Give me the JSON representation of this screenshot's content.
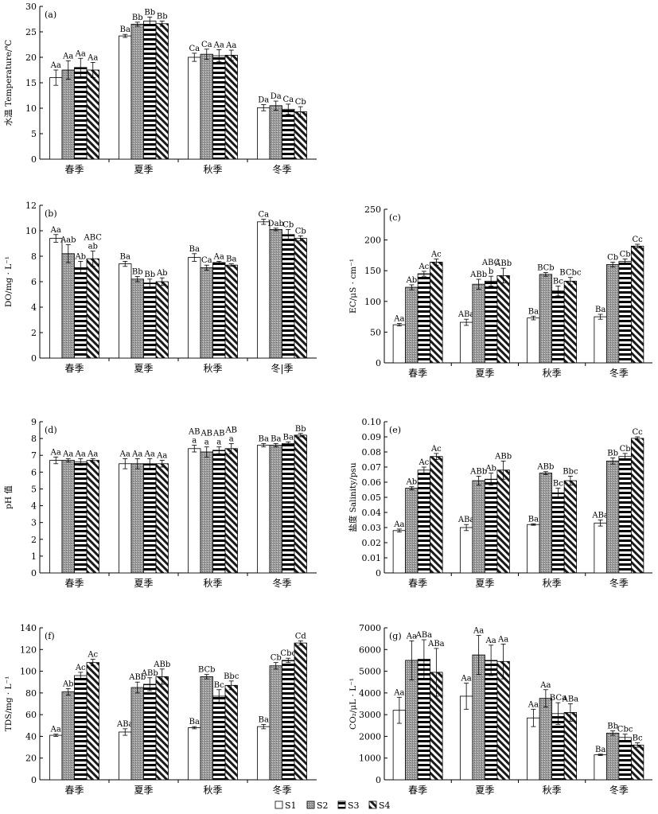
{
  "legend": [
    "S1",
    "S2",
    "S3",
    "S4"
  ],
  "chart_data": [
    {
      "id": "a",
      "type": "bar",
      "panel_label": "(a)",
      "ylabel": "水温 Temperature/℃",
      "categories": [
        "春季",
        "夏季",
        "秋季",
        "冬季"
      ],
      "ylim": [
        0,
        30
      ],
      "yticks": [
        0,
        5,
        10,
        15,
        20,
        25,
        30
      ],
      "series": [
        {
          "name": "S1",
          "values": [
            16.0,
            24.2,
            20.0,
            10.1
          ],
          "errors": [
            1.5,
            0.3,
            0.8,
            0.6
          ]
        },
        {
          "name": "S2",
          "values": [
            17.5,
            26.5,
            20.6,
            10.5
          ],
          "errors": [
            1.8,
            0.4,
            1.0,
            0.9
          ]
        },
        {
          "name": "S3",
          "values": [
            18.0,
            27.1,
            20.3,
            9.8
          ],
          "errors": [
            1.8,
            0.8,
            1.2,
            1.0
          ]
        },
        {
          "name": "S4",
          "values": [
            17.5,
            26.6,
            20.4,
            9.3
          ],
          "errors": [
            1.5,
            0.5,
            1.0,
            1.0
          ]
        }
      ],
      "labels": [
        [
          "Aa",
          "Aa",
          "Aa",
          "Aa"
        ],
        [
          "Ba",
          "Bb",
          "Bb",
          "Bb"
        ],
        [
          "Ca",
          "Ca",
          "Aa",
          "Aa"
        ],
        [
          "Da",
          "Da",
          "Ca",
          "Cb"
        ]
      ]
    },
    {
      "id": "b",
      "type": "bar",
      "panel_label": "(b)",
      "ylabel": "DO/mg · L⁻¹",
      "categories": [
        "春季",
        "夏季",
        "秋季",
        "冬|季"
      ],
      "ylim": [
        0,
        12
      ],
      "yticks": [
        0,
        2,
        4,
        6,
        8,
        10,
        12
      ],
      "series": [
        {
          "name": "S1",
          "values": [
            9.4,
            7.4,
            7.9,
            10.7
          ],
          "errors": [
            0.3,
            0.2,
            0.3,
            0.2
          ]
        },
        {
          "name": "S2",
          "values": [
            8.2,
            6.2,
            7.1,
            10.1
          ],
          "errors": [
            0.7,
            0.2,
            0.2,
            0.1
          ]
        },
        {
          "name": "S3",
          "values": [
            7.1,
            5.9,
            7.5,
            9.7
          ],
          "errors": [
            0.5,
            0.3,
            0.1,
            0.4
          ]
        },
        {
          "name": "S4",
          "values": [
            7.8,
            6.0,
            7.3,
            9.4
          ],
          "errors": [
            0.6,
            0.3,
            0.1,
            0.2
          ]
        }
      ],
      "labels": [
        [
          "Aa",
          "Aab",
          "Ab",
          "ABC\nab"
        ],
        [
          "Ba",
          "Bb",
          "Bb",
          "Ab"
        ],
        [
          "Ba",
          "Ca",
          "Aa",
          "Ba"
        ],
        [
          "Ca",
          "Dab",
          "Cb",
          "Cb"
        ]
      ]
    },
    {
      "id": "c",
      "type": "bar",
      "panel_label": "(c)",
      "ylabel": "EC/μS · cm⁻¹",
      "categories": [
        "春季",
        "夏季",
        "秋季",
        "冬季"
      ],
      "ylim": [
        0,
        250
      ],
      "yticks": [
        0,
        50,
        100,
        150,
        200,
        250
      ],
      "series": [
        {
          "name": "S1",
          "values": [
            62,
            66,
            73,
            75
          ],
          "errors": [
            2,
            5,
            3,
            4
          ]
        },
        {
          "name": "S2",
          "values": [
            123,
            128,
            144,
            160
          ],
          "errors": [
            4,
            8,
            3,
            4
          ]
        },
        {
          "name": "S3",
          "values": [
            145,
            133,
            117,
            165
          ],
          "errors": [
            4,
            8,
            8,
            4
          ]
        },
        {
          "name": "S4",
          "values": [
            164,
            142,
            133,
            190
          ],
          "errors": [
            5,
            12,
            6,
            3
          ]
        }
      ],
      "labels": [
        [
          "Aa",
          "Ab",
          "Ac",
          "Ac"
        ],
        [
          "ABa",
          "ABb",
          "ABC\nb",
          "ABb"
        ],
        [
          "Ba",
          "BCb",
          "Bc",
          "BCbc"
        ],
        [
          "Ba",
          "Cb",
          "Cb",
          "Cc"
        ]
      ]
    },
    {
      "id": "d",
      "type": "bar",
      "panel_label": "(d)",
      "ylabel": "pH 值",
      "categories": [
        "春季",
        "夏季",
        "秋季",
        "冬季"
      ],
      "ylim": [
        0,
        9
      ],
      "yticks": [
        0,
        1,
        2,
        3,
        4,
        5,
        6,
        7,
        8,
        9
      ],
      "series": [
        {
          "name": "S1",
          "values": [
            6.7,
            6.5,
            7.4,
            7.6
          ],
          "errors": [
            0.2,
            0.3,
            0.2,
            0.1
          ]
        },
        {
          "name": "S2",
          "values": [
            6.7,
            6.5,
            7.2,
            7.6
          ],
          "errors": [
            0.1,
            0.3,
            0.3,
            0.1
          ]
        },
        {
          "name": "S3",
          "values": [
            6.6,
            6.5,
            7.3,
            7.7
          ],
          "errors": [
            0.2,
            0.3,
            0.2,
            0.1
          ]
        },
        {
          "name": "S4",
          "values": [
            6.7,
            6.5,
            7.4,
            8.2
          ],
          "errors": [
            0.1,
            0.2,
            0.3,
            0.1
          ]
        }
      ],
      "labels": [
        [
          "Aa",
          "Aa",
          "Aa",
          "Aa"
        ],
        [
          "Aa",
          "Aa",
          "Aa",
          "Aa"
        ],
        [
          "AB\na",
          "AB\na",
          "AB\na",
          "AB\na"
        ],
        [
          "Ba",
          "Ba",
          "Ba",
          "Bb"
        ]
      ]
    },
    {
      "id": "e",
      "type": "bar",
      "panel_label": "(e)",
      "ylabel": "盐度 Salinity/psu",
      "categories": [
        "春季",
        "夏季",
        "秋季",
        "冬季"
      ],
      "ylim": [
        0,
        0.1
      ],
      "yticks": [
        0,
        0.01,
        0.02,
        0.03,
        0.04,
        0.05,
        0.06,
        0.07,
        0.08,
        0.09,
        0.1
      ],
      "series": [
        {
          "name": "S1",
          "values": [
            0.028,
            0.03,
            0.032,
            0.033
          ],
          "errors": [
            0.001,
            0.002,
            0.0005,
            0.002
          ]
        },
        {
          "name": "S2",
          "values": [
            0.056,
            0.061,
            0.066,
            0.074
          ],
          "errors": [
            0.001,
            0.003,
            0.001,
            0.002
          ]
        },
        {
          "name": "S3",
          "values": [
            0.068,
            0.062,
            0.053,
            0.077
          ],
          "errors": [
            0.002,
            0.004,
            0.003,
            0.002
          ]
        },
        {
          "name": "S4",
          "values": [
            0.077,
            0.068,
            0.061,
            0.089
          ],
          "errors": [
            0.002,
            0.006,
            0.003,
            0.001
          ]
        }
      ],
      "labels": [
        [
          "Aa",
          "Ab",
          "Ac",
          "Ac"
        ],
        [
          "ABa",
          "ABb",
          "Ab",
          "ABb"
        ],
        [
          "Ba",
          "ABb",
          "Bc",
          "Bbc"
        ],
        [
          "ABa",
          "Bb",
          "Cb",
          "Cc"
        ]
      ]
    },
    {
      "id": "f",
      "type": "bar",
      "panel_label": "(f)",
      "ylabel": "TDS/mg · L⁻¹",
      "categories": [
        "春季",
        "夏季",
        "秋季",
        "冬季"
      ],
      "ylim": [
        0,
        140
      ],
      "yticks": [
        0,
        20,
        40,
        60,
        80,
        100,
        120,
        140
      ],
      "series": [
        {
          "name": "S1",
          "values": [
            41,
            44,
            48,
            49
          ],
          "errors": [
            1,
            3,
            1,
            2
          ]
        },
        {
          "name": "S2",
          "values": [
            81,
            85,
            95,
            105
          ],
          "errors": [
            3,
            5,
            2,
            3
          ]
        },
        {
          "name": "S3",
          "values": [
            96,
            88,
            77,
            110
          ],
          "errors": [
            3,
            6,
            6,
            2
          ]
        },
        {
          "name": "S4",
          "values": [
            108,
            95,
            87,
            126
          ],
          "errors": [
            3,
            7,
            4,
            2
          ]
        }
      ],
      "labels": [
        [
          "Aa",
          "Ab",
          "Ac",
          "Ac"
        ],
        [
          "ABa",
          "ABb",
          "ABb",
          "ABb"
        ],
        [
          "Ba",
          "BCb",
          "Bc",
          "Bbc"
        ],
        [
          "Ba",
          "Cb",
          "Cbc",
          "Cd"
        ]
      ]
    },
    {
      "id": "g",
      "type": "bar",
      "panel_label": "(g)",
      "ylabel": "CO₂/μL · L⁻¹",
      "categories": [
        "春季",
        "夏季",
        "秋季",
        "冬季"
      ],
      "ylim": [
        0,
        7000
      ],
      "yticks": [
        0,
        1000,
        2000,
        3000,
        4000,
        5000,
        6000,
        7000
      ],
      "series": [
        {
          "name": "S1",
          "values": [
            3200,
            3850,
            2850,
            1150
          ],
          "errors": [
            600,
            600,
            400,
            30
          ]
        },
        {
          "name": "S2",
          "values": [
            5500,
            5750,
            3750,
            2150
          ],
          "errors": [
            900,
            900,
            400,
            100
          ]
        },
        {
          "name": "S3",
          "values": [
            5550,
            5500,
            3050,
            1950
          ],
          "errors": [
            900,
            700,
            500,
            150
          ]
        },
        {
          "name": "S4",
          "values": [
            4950,
            5450,
            3100,
            1600
          ],
          "errors": [
            1100,
            800,
            400,
            100
          ]
        }
      ],
      "labels": [
        [
          "Aa",
          "Aa",
          "ABa",
          "ABa"
        ],
        [
          "Aa",
          "Aa",
          "Aa",
          "Aa"
        ],
        [
          "Aa",
          "Aa",
          "BCa",
          "ABa"
        ],
        [
          "Ba",
          "Bb",
          "Cbc",
          "Bc"
        ]
      ]
    }
  ]
}
